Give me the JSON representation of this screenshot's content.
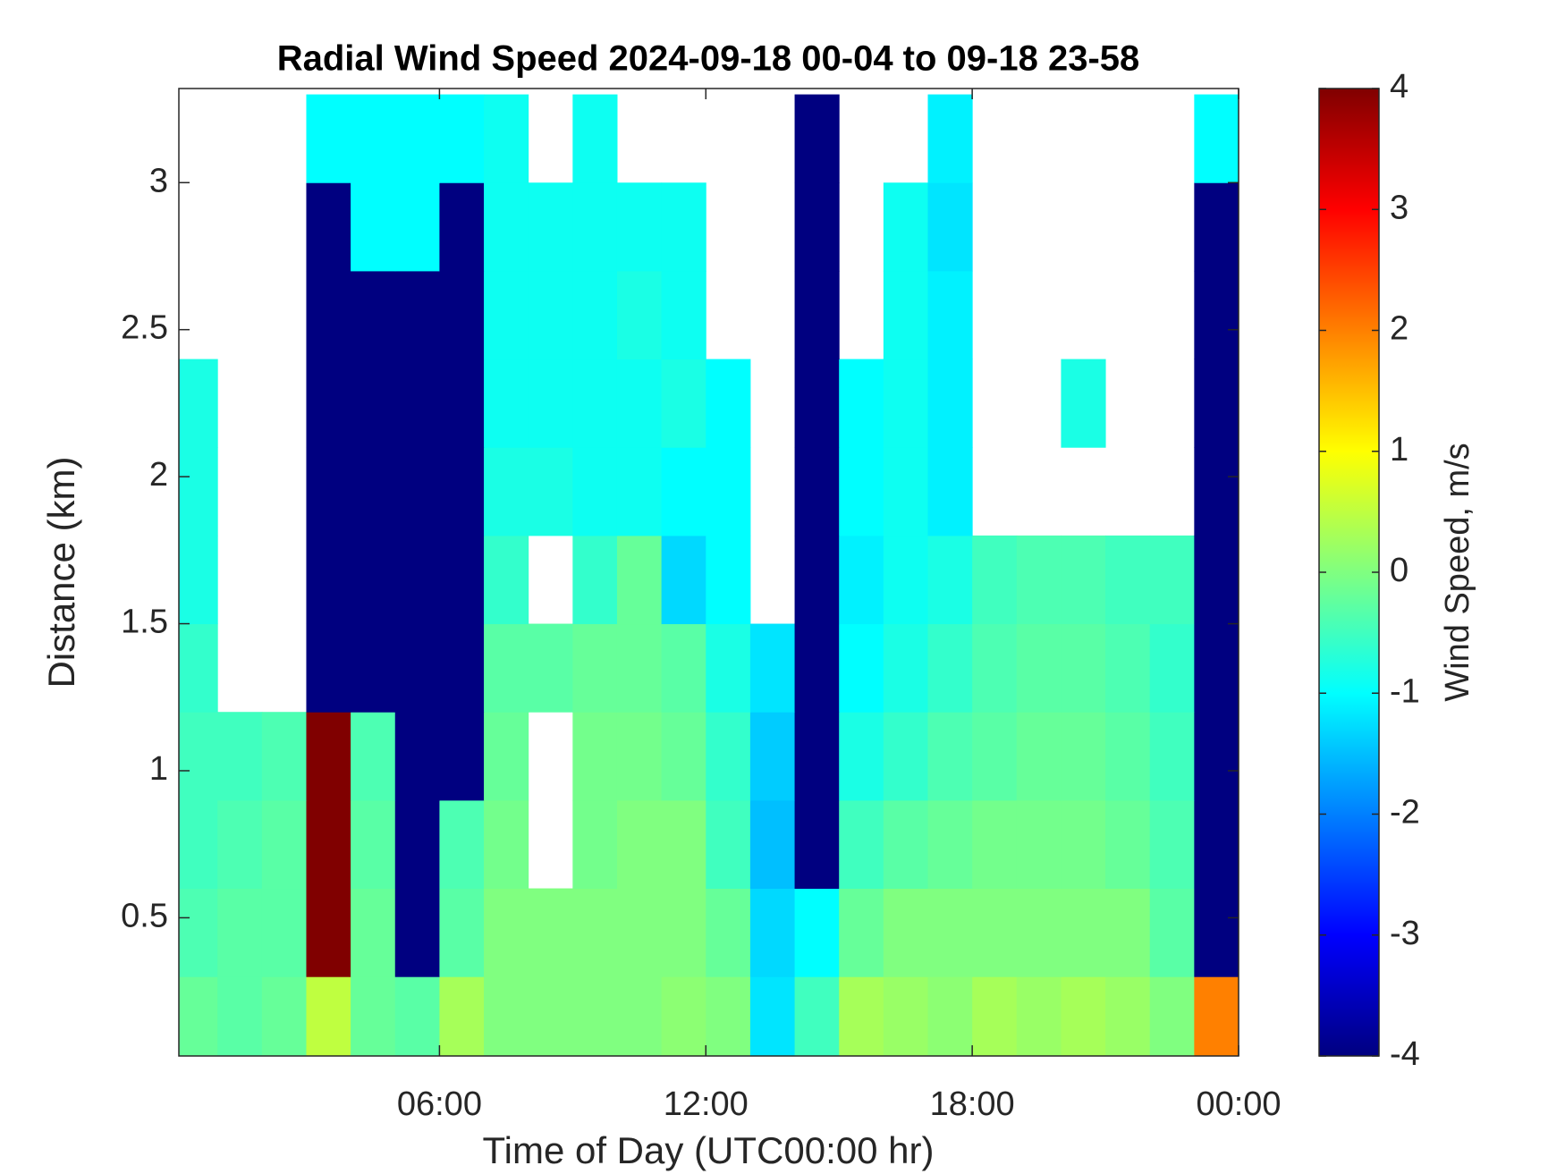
{
  "chart_data": {
    "type": "heatmap",
    "title": "Radial Wind Speed 2024-09-18 00-04 to 09-18 23-58",
    "x_label": "Time of Day (UTC00:00 hr)",
    "y_label": "Distance (km)",
    "colorbar_label": "Wind Speed, m/s",
    "colormap": "jet",
    "x": [
      0.5,
      1.5,
      2.5,
      3.5,
      4.5,
      5.5,
      6.5,
      7.5,
      8.5,
      9.5,
      10.5,
      11.5,
      12.5,
      13.5,
      14.5,
      15.5,
      16.5,
      17.5,
      18.5,
      19.5,
      20.5,
      21.5,
      22.5,
      23.5
    ],
    "y": [
      0.15,
      0.45,
      0.75,
      1.05,
      1.35,
      1.65,
      1.95,
      2.25,
      2.55,
      2.85,
      3.15
    ],
    "z": [
      [
        -0.2,
        -0.3,
        -0.2,
        0.5,
        -0.2,
        -0.3,
        0.3,
        0,
        0,
        0,
        0,
        0.1,
        0,
        -1.2,
        -0.5,
        0.3,
        0.2,
        0.1,
        0.3,
        0.2,
        0.3,
        0.2,
        0,
        2
      ],
      [
        -0.4,
        -0.3,
        -0.3,
        4,
        -0.2,
        -4,
        -0.3,
        0,
        0,
        0,
        0,
        0,
        -0.2,
        -1.3,
        -1,
        -0.2,
        0,
        0,
        0,
        0,
        0,
        0,
        -0.3,
        -4
      ],
      [
        -0.5,
        -0.4,
        -0.3,
        4,
        -0.3,
        -4,
        -0.4,
        -0.1,
        null,
        -0.1,
        0,
        0,
        -0.5,
        -1.5,
        -4,
        -0.5,
        -0.3,
        -0.2,
        -0.1,
        -0.1,
        -0.1,
        -0.2,
        -0.4,
        -4
      ],
      [
        -0.5,
        -0.5,
        -0.4,
        4,
        -0.4,
        -4,
        -4,
        -0.2,
        null,
        -0.1,
        -0.1,
        -0.2,
        -0.6,
        -1.4,
        -4,
        -0.8,
        -0.6,
        -0.4,
        -0.3,
        -0.2,
        -0.2,
        -0.3,
        -0.5,
        -4
      ],
      [
        -0.6,
        null,
        null,
        -4,
        -4,
        -4,
        -4,
        -0.3,
        -0.3,
        -0.2,
        -0.2,
        -0.3,
        -0.8,
        -1.2,
        -4,
        -1,
        -0.8,
        -0.6,
        -0.4,
        -0.3,
        -0.3,
        -0.4,
        -0.6,
        -4
      ],
      [
        -0.8,
        null,
        null,
        -4,
        -4,
        -4,
        -4,
        -0.6,
        null,
        -0.6,
        -0.2,
        -1.3,
        -1,
        null,
        -4,
        -1.1,
        -0.9,
        -0.8,
        -0.5,
        -0.4,
        -0.4,
        -0.5,
        -0.5,
        -4
      ],
      [
        -0.8,
        null,
        null,
        -4,
        -4,
        -4,
        -4,
        -0.8,
        -0.8,
        -0.9,
        -0.9,
        -1,
        -1,
        null,
        -4,
        -1,
        -0.9,
        -1.1,
        null,
        null,
        null,
        null,
        null,
        -4
      ],
      [
        -0.8,
        null,
        null,
        -4,
        -4,
        -4,
        -4,
        -0.9,
        -0.9,
        -0.9,
        -0.9,
        -0.8,
        -1,
        null,
        -4,
        -1,
        -0.9,
        -1.1,
        null,
        null,
        -0.8,
        null,
        null,
        -4
      ],
      [
        null,
        null,
        null,
        -4,
        -4,
        -4,
        -4,
        -0.9,
        -0.9,
        -0.9,
        -0.8,
        -0.9,
        null,
        null,
        -4,
        null,
        -0.9,
        -1.1,
        null,
        null,
        null,
        null,
        null,
        -4
      ],
      [
        null,
        null,
        null,
        -4,
        -1,
        -1,
        -4,
        -0.9,
        -0.9,
        -0.9,
        -0.9,
        -0.9,
        null,
        null,
        -4,
        null,
        -0.9,
        -1.2,
        null,
        null,
        null,
        null,
        null,
        -4
      ],
      [
        null,
        null,
        null,
        -1,
        -1,
        -1,
        -1,
        -0.9,
        null,
        -0.9,
        null,
        null,
        null,
        null,
        -4,
        null,
        null,
        -1.1,
        null,
        null,
        null,
        null,
        null,
        -1
      ]
    ],
    "xlim": [
      0.13,
      24
    ],
    "ylim": [
      0.03,
      3.32
    ],
    "xticks": [
      {
        "value": 6,
        "label": "06:00"
      },
      {
        "value": 12,
        "label": "12:00"
      },
      {
        "value": 18,
        "label": "18:00"
      },
      {
        "value": 24,
        "label": "00:00"
      }
    ],
    "yticks": [
      0.5,
      1,
      1.5,
      2,
      2.5,
      3
    ],
    "clim": [
      -4,
      4
    ],
    "cticks": [
      -4,
      -3,
      -2,
      -1,
      0,
      1,
      2,
      3,
      4
    ]
  }
}
